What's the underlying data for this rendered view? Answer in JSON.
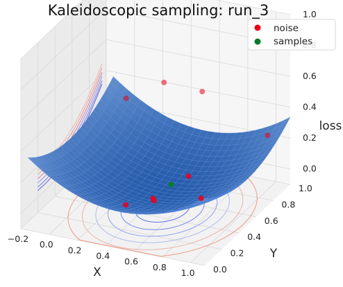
{
  "chart_data": {
    "type": "scatter",
    "projection": "3d",
    "title": "Kaleidoscopic sampling: run_3",
    "xlabel": "X",
    "ylabel": "Y",
    "zlabel": "loss",
    "x_ticks": [
      "−0.2",
      "0.0",
      "0.2",
      "0.4",
      "0.6",
      "0.8",
      "1.0"
    ],
    "y_ticks": [
      "0.0",
      "0.2",
      "0.4",
      "0.6",
      "0.8",
      "1.0"
    ],
    "z_ticks": [
      "0.0",
      "0.2",
      "0.4",
      "0.6",
      "0.8",
      "1.0"
    ],
    "xlim": [
      -0.2,
      1.1
    ],
    "ylim": [
      0.0,
      1.0
    ],
    "zlim": [
      -0.1,
      1.0
    ],
    "grid": true,
    "legend_position": "top-right",
    "surface": {
      "function": "quadratic bowl",
      "center": [
        0.5,
        0.5
      ],
      "z_min": 0.0,
      "colormap": "blue"
    },
    "contours": "projected on the floor and on the back walls",
    "series": [
      {
        "name": "noise",
        "color": "#e8001c",
        "points": [
          {
            "x": 0.36,
            "y": 0.3,
            "z": 0.0
          },
          {
            "x": 0.5,
            "y": 0.4,
            "z": 0.0
          },
          {
            "x": 0.48,
            "y": 0.42,
            "z": 0.0
          },
          {
            "x": 0.76,
            "y": 0.52,
            "z": 0.0
          },
          {
            "x": 0.97,
            "y": 0.95,
            "z": 0.22
          },
          {
            "x": 0.05,
            "y": 0.82,
            "z": 0.36
          },
          {
            "x": 0.22,
            "y": 0.98,
            "z": 0.41
          },
          {
            "x": 0.49,
            "y": 0.98,
            "z": 0.4
          },
          {
            "x": 0.55,
            "y": 0.72,
            "z": 0.0
          }
        ]
      },
      {
        "name": "samples",
        "color": "#0a7a2a",
        "points": [
          {
            "x": 0.5,
            "y": 0.6,
            "z": 0.0
          }
        ]
      }
    ]
  }
}
